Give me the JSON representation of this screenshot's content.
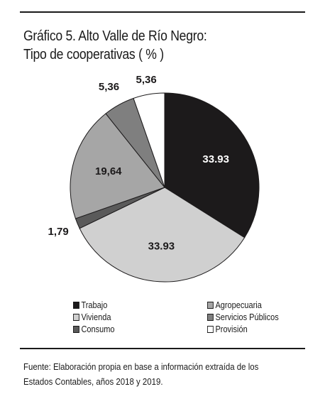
{
  "title_line1": "Gráfico 5. Alto Valle  de Río Negro:",
  "title_line2": "Tipo de cooperativas ( % )",
  "source_line1": "Fuente: Elaboración propia en base a información extraída de los",
  "source_line2": "Estados Contables, años 2018 y 2019.",
  "chart_data": {
    "type": "pie",
    "categories": [
      "Trabajo",
      "Vivienda",
      "Consumo",
      "Agropecuaria",
      "Servicios Públicos",
      "Provisión"
    ],
    "values": [
      33.93,
      33.93,
      1.79,
      19.64,
      5.36,
      5.36
    ],
    "labels": [
      "33.93",
      "33.93",
      "1,79",
      "19,64",
      "5,36",
      "5,36"
    ],
    "colors": [
      "#1c1a1b",
      "#d0d0d0",
      "#5a5a5a",
      "#a6a6a6",
      "#7f7f7f",
      "#ffffff"
    ],
    "label_colors": [
      "#ffffff",
      "#1c1a1b",
      "#1c1a1b",
      "#1c1a1b",
      "#1c1a1b",
      "#1c1a1b"
    ],
    "legend_placement": "bottom",
    "legend": [
      {
        "label": "Trabajo",
        "color": "#1c1a1b"
      },
      {
        "label": "Vivienda",
        "color": "#d0d0d0"
      },
      {
        "label": "Consumo",
        "color": "#5a5a5a"
      },
      {
        "label": "Agropecuaria",
        "color": "#a6a6a6"
      },
      {
        "label": "Servicios Públicos",
        "color": "#7f7f7f"
      },
      {
        "label": "Provisión",
        "color": "#ffffff"
      }
    ]
  }
}
